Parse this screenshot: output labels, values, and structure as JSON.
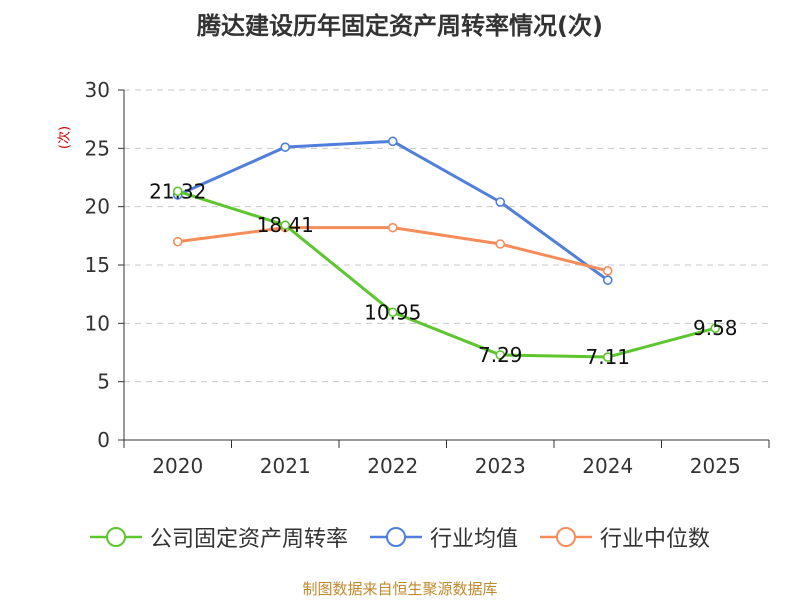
{
  "chart_data": {
    "type": "line",
    "title": "腾达建设历年固定资产周转率情况(次)",
    "ylabel": "(次)",
    "xlabel": "",
    "categories": [
      "2020",
      "2021",
      "2022",
      "2023",
      "2024",
      "2025"
    ],
    "ylim": [
      0,
      30
    ],
    "yticks": [
      0,
      5,
      10,
      15,
      20,
      25,
      30
    ],
    "grid": true,
    "legend_position": "bottom",
    "series": [
      {
        "name": "公司固定资产周转率",
        "color": "#5cc62d",
        "values": [
          21.32,
          18.41,
          10.95,
          7.29,
          7.11,
          9.58
        ],
        "labels": [
          "21.32",
          "18.41",
          "10.95",
          "7.29",
          "7.11",
          "9.58"
        ]
      },
      {
        "name": "行业均值",
        "color": "#4f7fdb",
        "values": [
          21.0,
          25.1,
          25.6,
          20.4,
          13.7,
          null
        ]
      },
      {
        "name": "行业中位数",
        "color": "#f58d5a",
        "values": [
          17.0,
          18.2,
          18.2,
          16.8,
          14.5,
          null
        ]
      }
    ]
  },
  "source": "制图数据来自恒生聚源数据库"
}
